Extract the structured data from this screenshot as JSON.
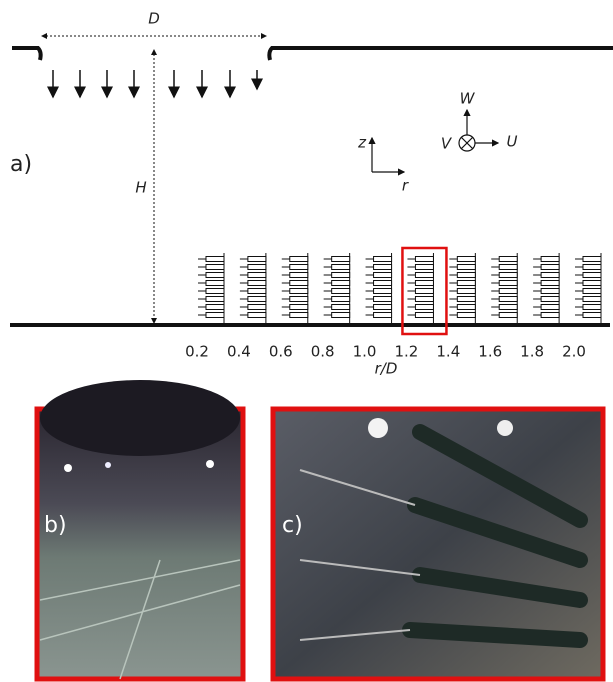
{
  "labels": {
    "panel_a": "a)",
    "panel_b": "b)",
    "panel_c": "c)",
    "diameter": "D",
    "height": "H",
    "w": "W",
    "v": "V",
    "u": "U",
    "z": "z",
    "r": "r"
  },
  "axis": {
    "label": "r/D",
    "ticks": [
      0.2,
      0.4,
      0.6,
      0.8,
      {
        "value": 1,
        "label": "1.0"
      },
      1.2,
      1.4,
      1.6,
      1.8,
      {
        "value": 2,
        "label": "2.0"
      }
    ],
    "highlight": 1.2
  }
}
